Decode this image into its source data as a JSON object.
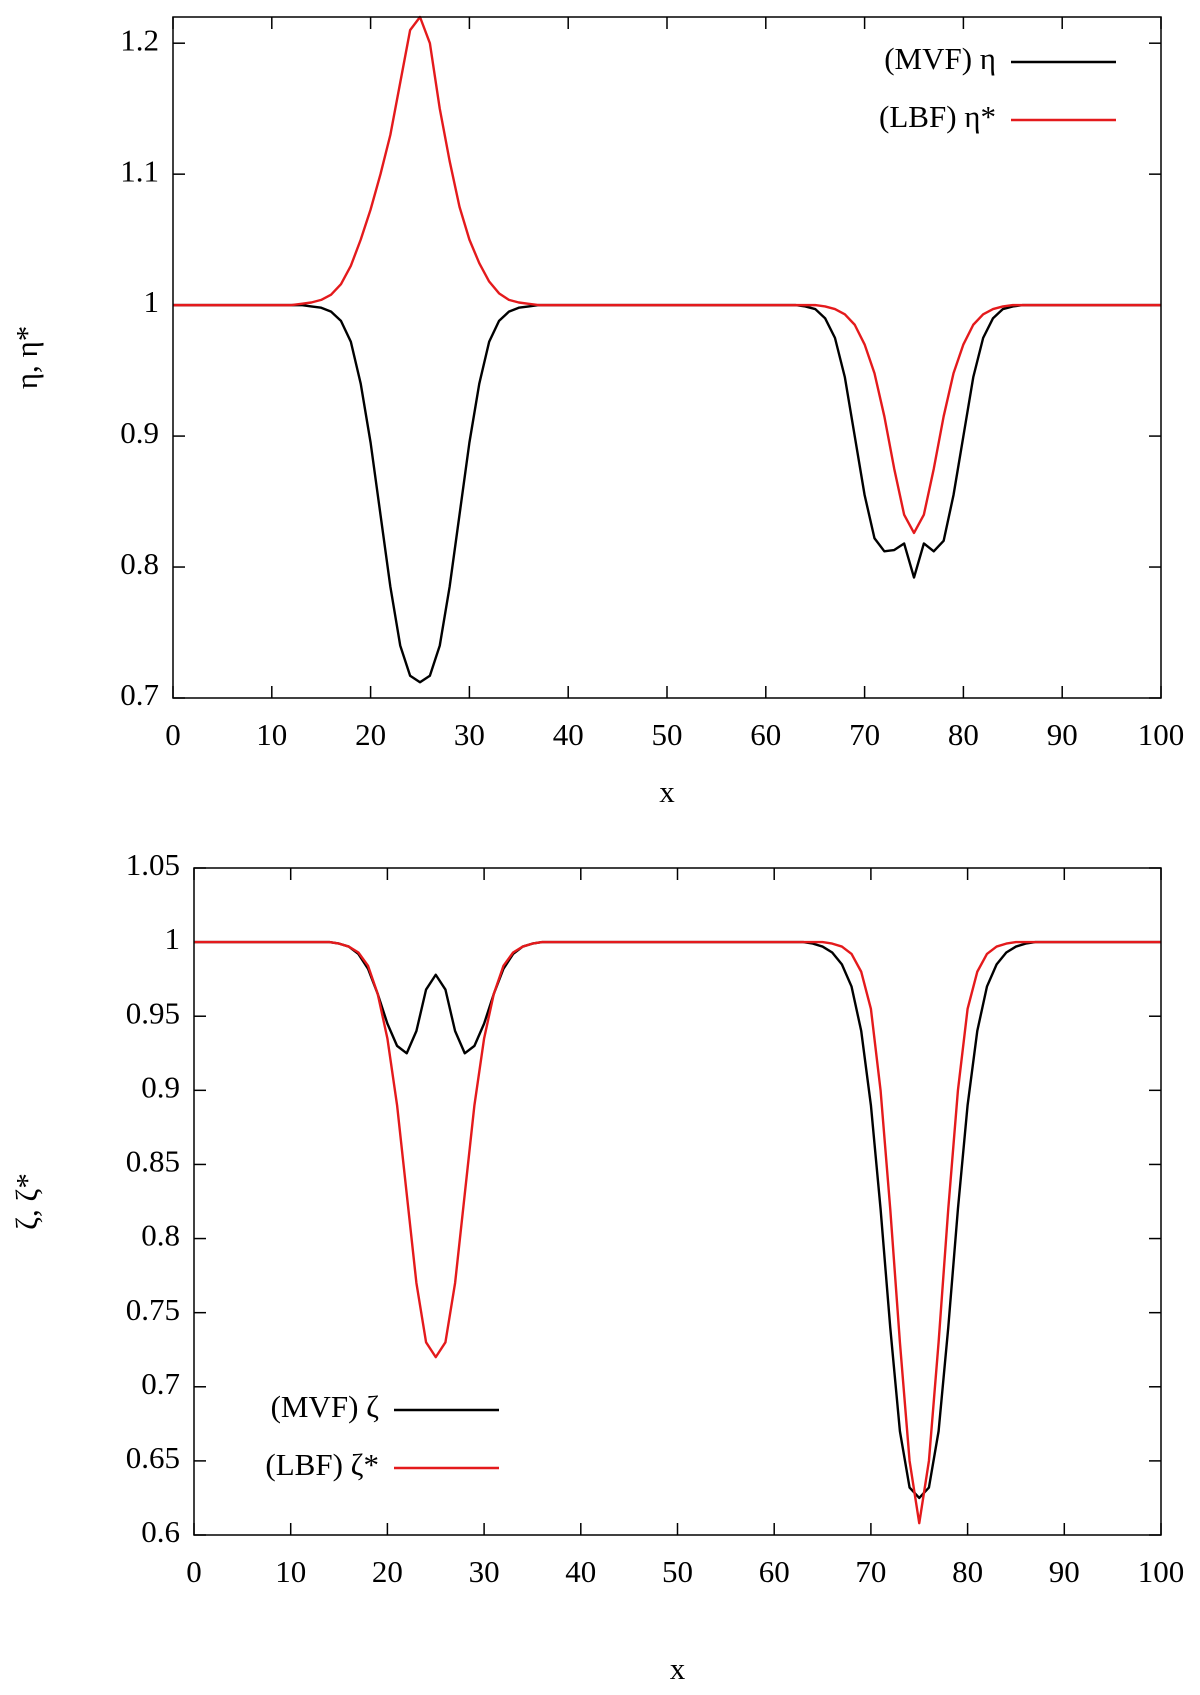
{
  "chart_data": [
    {
      "type": "line",
      "xlabel": "x",
      "ylabel": "η, η*",
      "legend": "upper right",
      "xlim": [
        0,
        100
      ],
      "xticks": [
        0,
        10,
        20,
        30,
        40,
        50,
        60,
        70,
        80,
        90,
        100
      ],
      "ylim": [
        0.7,
        1.22
      ],
      "yticks": [
        0.7,
        0.8,
        0.9,
        1,
        1.1,
        1.2
      ],
      "x": [
        0,
        1,
        2,
        3,
        4,
        5,
        6,
        7,
        8,
        9,
        10,
        11,
        12,
        13,
        14,
        15,
        16,
        17,
        18,
        19,
        20,
        21,
        22,
        23,
        24,
        25,
        26,
        27,
        28,
        29,
        30,
        31,
        32,
        33,
        34,
        35,
        36,
        37,
        38,
        39,
        40,
        41,
        42,
        43,
        44,
        45,
        46,
        47,
        48,
        49,
        50,
        51,
        52,
        53,
        54,
        55,
        56,
        57,
        58,
        59,
        60,
        61,
        62,
        63,
        64,
        65,
        66,
        67,
        68,
        69,
        70,
        71,
        72,
        73,
        74,
        75,
        76,
        77,
        78,
        79,
        80,
        81,
        82,
        83,
        84,
        85,
        86,
        87,
        88,
        89,
        90,
        91,
        92,
        93,
        94,
        95,
        96,
        97,
        98,
        99,
        100
      ],
      "series": [
        {
          "name": "(MVF) η",
          "color": "#000000",
          "values": [
            1,
            1,
            1,
            1,
            1,
            1,
            1,
            1,
            1,
            1,
            1,
            1,
            1,
            1,
            0.999,
            0.998,
            0.995,
            0.988,
            0.972,
            0.94,
            0.895,
            0.84,
            0.785,
            0.74,
            0.717,
            0.712,
            0.717,
            0.74,
            0.785,
            0.84,
            0.895,
            0.94,
            0.972,
            0.988,
            0.995,
            0.998,
            0.999,
            1,
            1,
            1,
            1,
            1,
            1,
            1,
            1,
            1,
            1,
            1,
            1,
            1,
            1,
            1,
            1,
            1,
            1,
            1,
            1,
            1,
            1,
            1,
            1,
            1,
            1,
            1,
            0.999,
            0.997,
            0.99,
            0.975,
            0.945,
            0.9,
            0.855,
            0.822,
            0.812,
            0.813,
            0.818,
            0.792,
            0.818,
            0.812,
            0.82,
            0.855,
            0.9,
            0.945,
            0.975,
            0.99,
            0.997,
            0.999,
            1,
            1,
            1,
            1,
            1,
            1,
            1,
            1,
            1,
            1,
            1,
            1,
            1,
            1,
            1
          ]
        },
        {
          "name": "(LBF) η*",
          "color": "#e41a1c",
          "values": [
            1,
            1,
            1,
            1,
            1,
            1,
            1,
            1,
            1,
            1,
            1,
            1,
            1,
            1.001,
            1.002,
            1.004,
            1.008,
            1.016,
            1.03,
            1.05,
            1.073,
            1.1,
            1.13,
            1.17,
            1.21,
            1.22,
            1.2,
            1.15,
            1.11,
            1.075,
            1.05,
            1.032,
            1.018,
            1.009,
            1.004,
            1.002,
            1.001,
            1,
            1,
            1,
            1,
            1,
            1,
            1,
            1,
            1,
            1,
            1,
            1,
            1,
            1,
            1,
            1,
            1,
            1,
            1,
            1,
            1,
            1,
            1,
            1,
            1,
            1,
            1,
            1,
            1,
            0.999,
            0.997,
            0.993,
            0.985,
            0.97,
            0.948,
            0.915,
            0.875,
            0.84,
            0.826,
            0.84,
            0.875,
            0.915,
            0.948,
            0.97,
            0.985,
            0.993,
            0.997,
            0.999,
            1,
            1,
            1,
            1,
            1,
            1,
            1,
            1,
            1,
            1,
            1,
            1,
            1,
            1,
            1,
            1
          ]
        }
      ]
    },
    {
      "type": "line",
      "xlabel": "x",
      "ylabel": "ζ, ζ*",
      "legend": "lower left",
      "xlim": [
        0,
        100
      ],
      "xticks": [
        0,
        10,
        20,
        30,
        40,
        50,
        60,
        70,
        80,
        90,
        100
      ],
      "ylim": [
        0.6,
        1.05
      ],
      "yticks": [
        0.6,
        0.65,
        0.7,
        0.75,
        0.8,
        0.85,
        0.9,
        0.95,
        1,
        1.05
      ],
      "x": [
        0,
        1,
        2,
        3,
        4,
        5,
        6,
        7,
        8,
        9,
        10,
        11,
        12,
        13,
        14,
        15,
        16,
        17,
        18,
        19,
        20,
        21,
        22,
        23,
        24,
        25,
        26,
        27,
        28,
        29,
        30,
        31,
        32,
        33,
        34,
        35,
        36,
        37,
        38,
        39,
        40,
        41,
        42,
        43,
        44,
        45,
        46,
        47,
        48,
        49,
        50,
        51,
        52,
        53,
        54,
        55,
        56,
        57,
        58,
        59,
        60,
        61,
        62,
        63,
        64,
        65,
        66,
        67,
        68,
        69,
        70,
        71,
        72,
        73,
        74,
        75,
        76,
        77,
        78,
        79,
        80,
        81,
        82,
        83,
        84,
        85,
        86,
        87,
        88,
        89,
        90,
        91,
        92,
        93,
        94,
        95,
        96,
        97,
        98,
        99,
        100
      ],
      "series": [
        {
          "name": "(MVF) ζ",
          "color": "#000000",
          "values": [
            1,
            1,
            1,
            1,
            1,
            1,
            1,
            1,
            1,
            1,
            1,
            1,
            1,
            1,
            1,
            0.999,
            0.997,
            0.992,
            0.982,
            0.965,
            0.945,
            0.93,
            0.925,
            0.94,
            0.968,
            0.978,
            0.968,
            0.94,
            0.925,
            0.93,
            0.945,
            0.965,
            0.982,
            0.992,
            0.997,
            0.999,
            1,
            1,
            1,
            1,
            1,
            1,
            1,
            1,
            1,
            1,
            1,
            1,
            1,
            1,
            1,
            1,
            1,
            1,
            1,
            1,
            1,
            1,
            1,
            1,
            1,
            1,
            1,
            1,
            0.999,
            0.997,
            0.993,
            0.985,
            0.97,
            0.94,
            0.89,
            0.82,
            0.74,
            0.67,
            0.632,
            0.625,
            0.632,
            0.67,
            0.74,
            0.82,
            0.89,
            0.94,
            0.97,
            0.985,
            0.993,
            0.997,
            0.999,
            1,
            1,
            1,
            1,
            1,
            1,
            1,
            1,
            1,
            1,
            1,
            1,
            1,
            1
          ]
        },
        {
          "name": "(LBF) ζ*",
          "color": "#e41a1c",
          "values": [
            1,
            1,
            1,
            1,
            1,
            1,
            1,
            1,
            1,
            1,
            1,
            1,
            1,
            1,
            1,
            0.999,
            0.997,
            0.993,
            0.984,
            0.965,
            0.935,
            0.89,
            0.83,
            0.77,
            0.73,
            0.72,
            0.73,
            0.77,
            0.83,
            0.89,
            0.935,
            0.965,
            0.984,
            0.993,
            0.997,
            0.999,
            1,
            1,
            1,
            1,
            1,
            1,
            1,
            1,
            1,
            1,
            1,
            1,
            1,
            1,
            1,
            1,
            1,
            1,
            1,
            1,
            1,
            1,
            1,
            1,
            1,
            1,
            1,
            1,
            1,
            1,
            0.999,
            0.997,
            0.992,
            0.98,
            0.955,
            0.9,
            0.82,
            0.73,
            0.65,
            0.608,
            0.65,
            0.73,
            0.82,
            0.9,
            0.955,
            0.98,
            0.992,
            0.997,
            0.999,
            1,
            1,
            1,
            1,
            1,
            1,
            1,
            1,
            1,
            1,
            1,
            1,
            1,
            1,
            1,
            1
          ]
        }
      ]
    }
  ]
}
